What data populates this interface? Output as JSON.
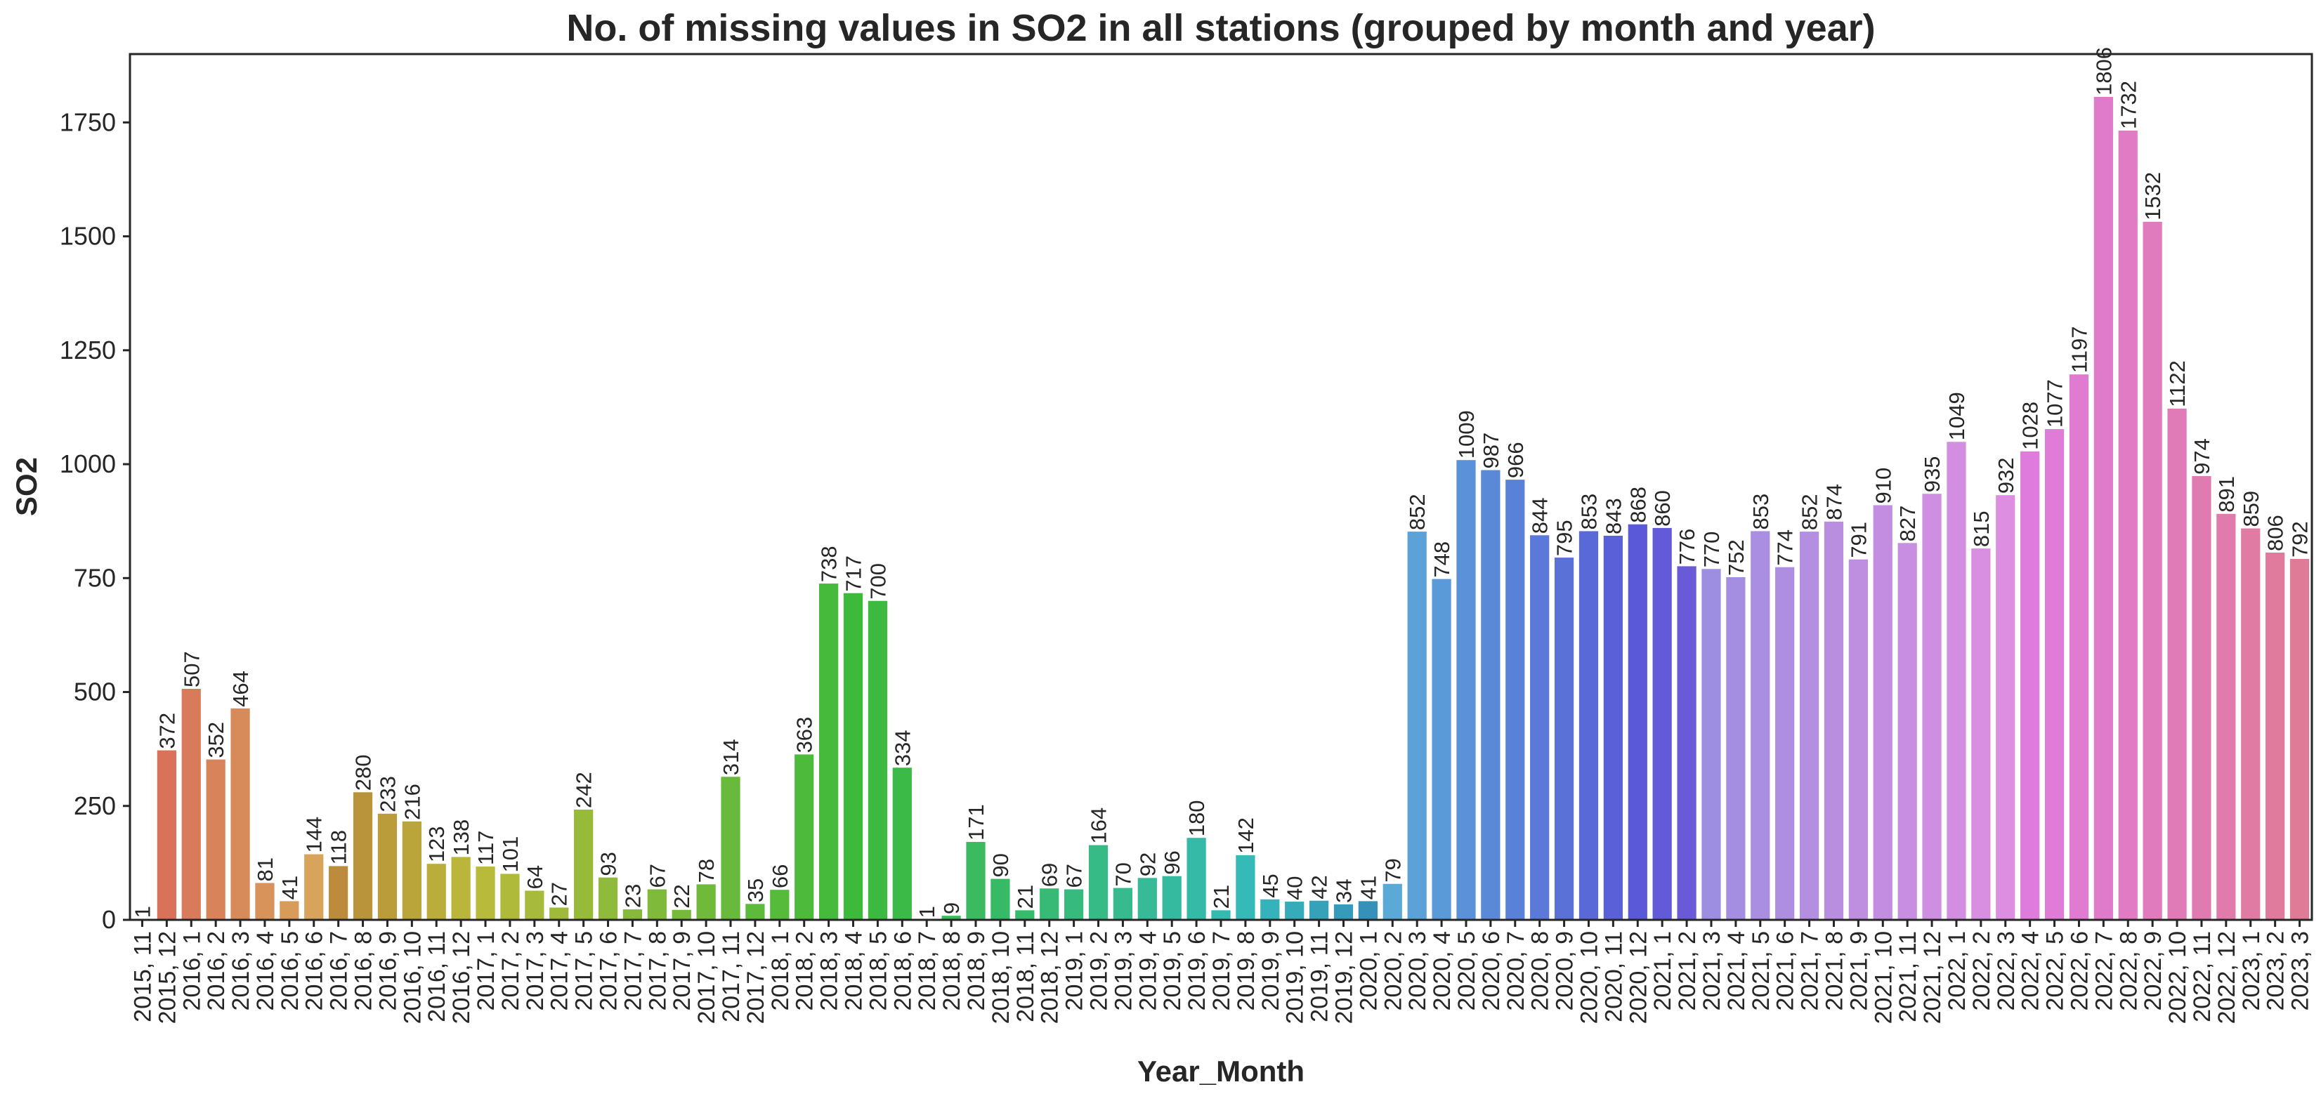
{
  "chart_data": {
    "type": "bar",
    "title": "No. of missing values in SO2 in all stations (grouped by month and year)",
    "xlabel": "Year_Month",
    "ylabel": "SO2",
    "ylim": [
      0,
      1900
    ],
    "yticks": [
      0,
      250,
      500,
      750,
      1000,
      1250,
      1500,
      1750
    ],
    "grid": false,
    "legend": "none",
    "palette": "husl",
    "categories": [
      "2015, 11",
      "2015, 12",
      "2016, 1",
      "2016, 2",
      "2016, 3",
      "2016, 4",
      "2016, 5",
      "2016, 6",
      "2016, 7",
      "2016, 8",
      "2016, 9",
      "2016, 10",
      "2016, 11",
      "2016, 12",
      "2017, 1",
      "2017, 2",
      "2017, 3",
      "2017, 4",
      "2017, 5",
      "2017, 6",
      "2017, 7",
      "2017, 8",
      "2017, 9",
      "2017, 10",
      "2017, 11",
      "2017, 12",
      "2018, 1",
      "2018, 2",
      "2018, 3",
      "2018, 4",
      "2018, 5",
      "2018, 6",
      "2018, 7",
      "2018, 8",
      "2018, 9",
      "2018, 10",
      "2018, 11",
      "2018, 12",
      "2019, 1",
      "2019, 2",
      "2019, 3",
      "2019, 4",
      "2019, 5",
      "2019, 6",
      "2019, 7",
      "2019, 8",
      "2019, 9",
      "2019, 10",
      "2019, 11",
      "2019, 12",
      "2020, 1",
      "2020, 2",
      "2020, 3",
      "2020, 4",
      "2020, 5",
      "2020, 6",
      "2020, 7",
      "2020, 8",
      "2020, 9",
      "2020, 10",
      "2020, 11",
      "2020, 12",
      "2021, 1",
      "2021, 2",
      "2021, 3",
      "2021, 4",
      "2021, 5",
      "2021, 6",
      "2021, 7",
      "2021, 8",
      "2021, 9",
      "2021, 10",
      "2021, 11",
      "2021, 12",
      "2022, 1",
      "2022, 2",
      "2022, 3",
      "2022, 4",
      "2022, 5",
      "2022, 6",
      "2022, 7",
      "2022, 8",
      "2022, 9",
      "2022, 10",
      "2022, 11",
      "2022, 12",
      "2023, 1",
      "2023, 2",
      "2023, 3"
    ],
    "values": [
      1,
      372,
      507,
      352,
      464,
      81,
      41,
      144,
      118,
      280,
      233,
      216,
      123,
      138,
      117,
      101,
      64,
      27,
      242,
      93,
      23,
      67,
      22,
      78,
      314,
      35,
      66,
      363,
      738,
      717,
      700,
      334,
      1,
      9,
      171,
      90,
      21,
      69,
      67,
      164,
      70,
      92,
      96,
      180,
      21,
      142,
      45,
      40,
      42,
      34,
      41,
      79,
      852,
      748,
      1009,
      987,
      966,
      844,
      795,
      853,
      843,
      868,
      860,
      776,
      770,
      752,
      853,
      774,
      852,
      874,
      791,
      910,
      827,
      935,
      1049,
      815,
      932,
      1028,
      1077,
      1197,
      1806,
      1732,
      1532,
      1122,
      974,
      891,
      859,
      806,
      792
    ]
  }
}
